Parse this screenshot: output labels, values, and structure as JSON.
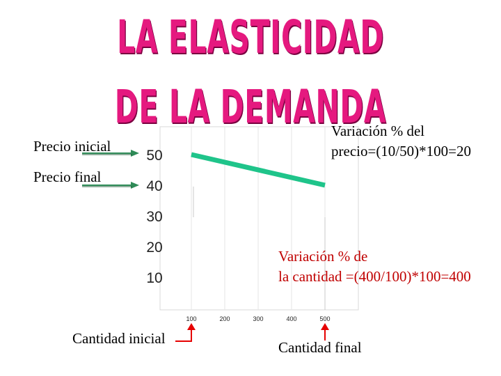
{
  "title": "LA ELASTICIDAD DE LA DEMANDA",
  "labels": {
    "precio_inicial": "Precio inicial",
    "precio_final": "Precio final",
    "cantidad_inicial": "Cantidad inicial",
    "cantidad_final": "Cantidad final",
    "variacion_precio_1": "Variación % del",
    "variacion_precio_2": "precio=(10/50)*100=20",
    "variacion_cantidad_1": "Variación % de",
    "variacion_cantidad_2": "la cantidad =(400/100)*100=400"
  },
  "chart_data": {
    "type": "line",
    "y_ticks": [
      50,
      40,
      30,
      20,
      10
    ],
    "x_ticks": [
      100,
      200,
      300,
      400,
      500
    ],
    "series": [
      {
        "x": [
          100,
          500
        ],
        "y": [
          50,
          40
        ]
      }
    ],
    "colors": {
      "line": "#1fc48a",
      "price_arrows": "#2e8b57",
      "quantity_arrows": "#e60000",
      "title": "#e5197f",
      "quantity_text": "#c00000"
    }
  }
}
